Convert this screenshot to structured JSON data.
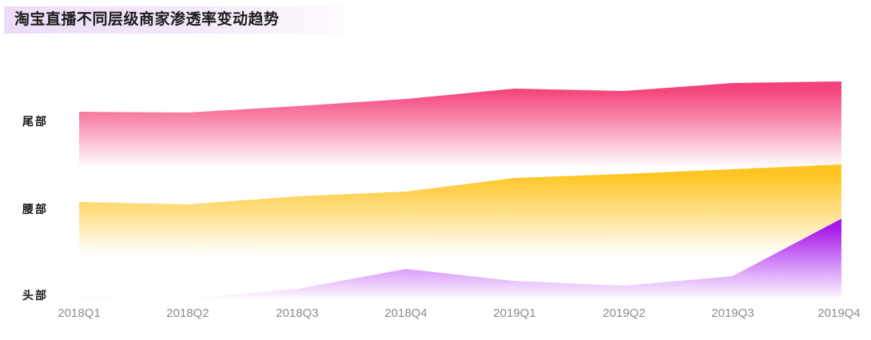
{
  "colors": {
    "title_highlight": "#eedcf6",
    "tail_pink": "#f43f78",
    "waist_yellow": "#ffc31c",
    "head_purple": "#a413f1",
    "axis_label": "#8c8c8c",
    "text": "#1c1c1c"
  },
  "chart_data": {
    "type": "area",
    "title": "淘宝直播不同层级商家渗透率变动趋势",
    "categories": [
      "2018Q1",
      "2018Q2",
      "2018Q3",
      "2018Q4",
      "2019Q1",
      "2019Q2",
      "2019Q3",
      "2019Q4"
    ],
    "series": [
      {
        "key": "tail",
        "name": "尾部",
        "color": "#f43f78",
        "values": [
          70,
          69,
          77,
          86,
          99,
          96,
          106,
          108
        ]
      },
      {
        "key": "waist",
        "name": "腰部",
        "color": "#ffc31c",
        "values": [
          67,
          64,
          74,
          80,
          97,
          102,
          108,
          114
        ]
      },
      {
        "key": "head",
        "name": "头部",
        "color": "#a413f1",
        "values": [
          4,
          2,
          14,
          39,
          24,
          18,
          30,
          102
        ]
      }
    ],
    "xlabel": "",
    "ylabel": "",
    "grid": false,
    "legend_position": "row-labels-left",
    "x_axis_labels_visible": true,
    "y_axis_visible": false
  }
}
